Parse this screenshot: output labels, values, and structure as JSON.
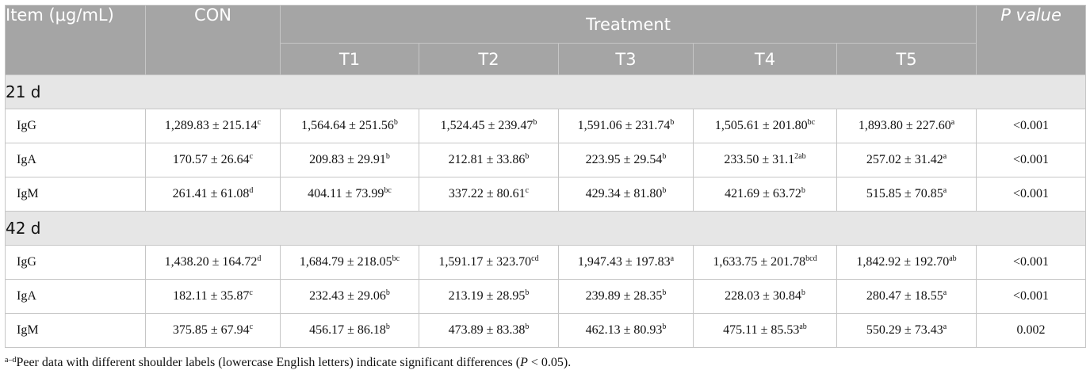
{
  "header": {
    "item": "Item (μg/mL)",
    "con": "CON",
    "treatment": "Treatment",
    "pvalue": "P value",
    "groups": [
      "T1",
      "T2",
      "T3",
      "T4",
      "T5"
    ]
  },
  "sections": [
    {
      "title": "21 d",
      "rows": [
        {
          "item": "IgG",
          "cells": [
            {
              "v": "1,289.83 ± 215.14",
              "s": "c"
            },
            {
              "v": "1,564.64 ± 251.56",
              "s": "b"
            },
            {
              "v": "1,524.45 ± 239.47",
              "s": "b"
            },
            {
              "v": "1,591.06 ± 231.74",
              "s": "b"
            },
            {
              "v": "1,505.61 ± 201.80",
              "s": "bc"
            },
            {
              "v": "1,893.80 ± 227.60",
              "s": "a"
            }
          ],
          "p": "<0.001"
        },
        {
          "item": "IgA",
          "cells": [
            {
              "v": "170.57 ± 26.64",
              "s": "c"
            },
            {
              "v": "209.83 ± 29.91",
              "s": "b"
            },
            {
              "v": "212.81 ± 33.86",
              "s": "b"
            },
            {
              "v": "223.95 ± 29.54",
              "s": "b"
            },
            {
              "v": "233.50 ± 31.1",
              "s": "2ab"
            },
            {
              "v": "257.02 ± 31.42",
              "s": "a"
            }
          ],
          "p": "<0.001"
        },
        {
          "item": "IgM",
          "cells": [
            {
              "v": "261.41 ± 61.08",
              "s": "d"
            },
            {
              "v": "404.11 ± 73.99",
              "s": "bc"
            },
            {
              "v": "337.22 ± 80.61",
              "s": "c"
            },
            {
              "v": "429.34 ± 81.80",
              "s": "b"
            },
            {
              "v": "421.69 ± 63.72",
              "s": "b"
            },
            {
              "v": "515.85 ± 70.85",
              "s": "a"
            }
          ],
          "p": "<0.001"
        }
      ]
    },
    {
      "title": "42 d",
      "rows": [
        {
          "item": "IgG",
          "cells": [
            {
              "v": "1,438.20 ± 164.72",
              "s": "d"
            },
            {
              "v": "1,684.79 ± 218.05",
              "s": "bc"
            },
            {
              "v": "1,591.17 ± 323.70",
              "s": "cd"
            },
            {
              "v": "1,947.43 ± 197.83",
              "s": "a"
            },
            {
              "v": "1,633.75 ± 201.78",
              "s": "bcd"
            },
            {
              "v": "1,842.92 ± 192.70",
              "s": "ab"
            }
          ],
          "p": "<0.001"
        },
        {
          "item": "IgA",
          "cells": [
            {
              "v": "182.11 ± 35.87",
              "s": "c"
            },
            {
              "v": "232.43 ± 29.06",
              "s": "b"
            },
            {
              "v": "213.19 ± 28.95",
              "s": "b"
            },
            {
              "v": "239.89 ± 28.35",
              "s": "b"
            },
            {
              "v": "228.03 ± 30.84",
              "s": "b"
            },
            {
              "v": "280.47 ± 18.55",
              "s": "a"
            }
          ],
          "p": "<0.001"
        },
        {
          "item": "IgM",
          "cells": [
            {
              "v": "375.85 ± 67.94",
              "s": "c"
            },
            {
              "v": "456.17 ± 86.18",
              "s": "b"
            },
            {
              "v": "473.89 ± 83.38",
              "s": "b"
            },
            {
              "v": "462.13 ± 80.93",
              "s": "b"
            },
            {
              "v": "475.11 ± 85.53",
              "s": "ab"
            },
            {
              "v": "550.29 ± 73.43",
              "s": "a"
            }
          ],
          "p": "0.002"
        }
      ]
    }
  ],
  "footnote": {
    "marker": "a–d",
    "text": "Peer data with different shoulder labels (lowercase English letters) indicate significant differences (",
    "p": "P",
    "tail": " < 0.05)."
  }
}
